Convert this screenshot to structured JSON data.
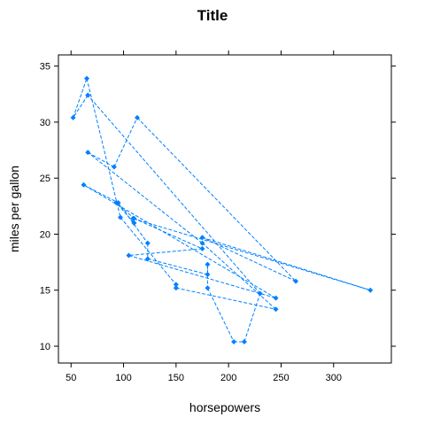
{
  "chart_data": {
    "type": "line",
    "title": "Title",
    "xlabel": "horsepowers",
    "ylabel": "miles per gallon",
    "xlim": [
      38,
      355
    ],
    "ylim": [
      8.5,
      36
    ],
    "xticks": [
      50,
      100,
      150,
      200,
      250,
      300
    ],
    "yticks": [
      10,
      15,
      20,
      25,
      30,
      35
    ],
    "grid": false,
    "line_style": "dashed",
    "color": "#0080ff",
    "points": [
      {
        "x": 110,
        "y": 21.0
      },
      {
        "x": 110,
        "y": 21.0
      },
      {
        "x": 93,
        "y": 22.8
      },
      {
        "x": 110,
        "y": 21.4
      },
      {
        "x": 175,
        "y": 18.7
      },
      {
        "x": 105,
        "y": 18.1
      },
      {
        "x": 245,
        "y": 14.3
      },
      {
        "x": 62,
        "y": 24.4
      },
      {
        "x": 95,
        "y": 22.8
      },
      {
        "x": 123,
        "y": 19.2
      },
      {
        "x": 123,
        "y": 17.8
      },
      {
        "x": 180,
        "y": 16.4
      },
      {
        "x": 180,
        "y": 17.3
      },
      {
        "x": 180,
        "y": 15.2
      },
      {
        "x": 205,
        "y": 10.4
      },
      {
        "x": 215,
        "y": 10.4
      },
      {
        "x": 230,
        "y": 14.7
      },
      {
        "x": 66,
        "y": 32.4
      },
      {
        "x": 52,
        "y": 30.4
      },
      {
        "x": 65,
        "y": 33.9
      },
      {
        "x": 97,
        "y": 21.5
      },
      {
        "x": 150,
        "y": 15.5
      },
      {
        "x": 150,
        "y": 15.2
      },
      {
        "x": 245,
        "y": 13.3
      },
      {
        "x": 175,
        "y": 19.2
      },
      {
        "x": 66,
        "y": 27.3
      },
      {
        "x": 91,
        "y": 26.0
      },
      {
        "x": 113,
        "y": 30.4
      },
      {
        "x": 264,
        "y": 15.8
      },
      {
        "x": 175,
        "y": 19.7
      },
      {
        "x": 335,
        "y": 15.0
      },
      {
        "x": 109,
        "y": 21.4
      }
    ]
  }
}
